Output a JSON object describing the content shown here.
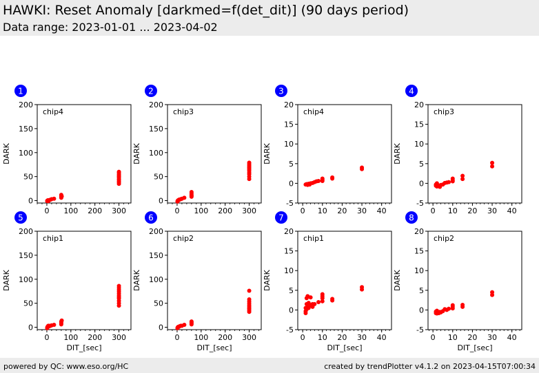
{
  "header": {
    "title": "HAWKI: Reset Anomaly [darkmed=f(det_dit)] (90 days period)",
    "subtitle": "Data range: 2023-01-01 ... 2023-04-02"
  },
  "footer": {
    "left": "powered by QC: www.eso.org/HC",
    "right": "created by trendPlotter v4.1.2 on 2023-04-15T07:00:34"
  },
  "colors": {
    "marker": "#ff0000",
    "badge": "#0000ff"
  },
  "chart_data": [
    {
      "type": "scatter",
      "id": "1",
      "label": "chip4",
      "xlabel": "",
      "ylabel": "DARK",
      "xlim": [
        -40,
        350
      ],
      "ylim": [
        -5,
        200
      ],
      "xticks": [
        0,
        100,
        200,
        300
      ],
      "yticks": [
        0,
        50,
        100,
        150,
        200
      ],
      "points": [
        [
          1.5,
          -1
        ],
        [
          2,
          0
        ],
        [
          3,
          -0.5
        ],
        [
          4,
          0
        ],
        [
          5,
          1
        ],
        [
          6,
          -1
        ],
        [
          8,
          0
        ],
        [
          10,
          1
        ],
        [
          15,
          2
        ],
        [
          20,
          3
        ],
        [
          30,
          4
        ],
        [
          60,
          6
        ],
        [
          60,
          8
        ],
        [
          60,
          10
        ],
        [
          60,
          12
        ],
        [
          62,
          9
        ],
        [
          300,
          35
        ],
        [
          300,
          38
        ],
        [
          300,
          40
        ],
        [
          300,
          43
        ],
        [
          300,
          45
        ],
        [
          300,
          48
        ],
        [
          300,
          50
        ],
        [
          300,
          52
        ],
        [
          300,
          55
        ],
        [
          300,
          58
        ],
        [
          300,
          60
        ]
      ]
    },
    {
      "type": "scatter",
      "id": "2",
      "label": "chip3",
      "xlabel": "",
      "ylabel": "DARK",
      "xlim": [
        -40,
        350
      ],
      "ylim": [
        -5,
        200
      ],
      "xticks": [
        0,
        100,
        200,
        300
      ],
      "yticks": [
        0,
        50,
        100,
        150,
        200
      ],
      "points": [
        [
          1.5,
          -2
        ],
        [
          2,
          -1
        ],
        [
          3,
          0
        ],
        [
          4,
          0
        ],
        [
          5,
          1
        ],
        [
          6,
          1
        ],
        [
          8,
          2
        ],
        [
          10,
          2
        ],
        [
          15,
          3
        ],
        [
          20,
          4
        ],
        [
          30,
          6
        ],
        [
          60,
          8
        ],
        [
          60,
          10
        ],
        [
          60,
          12
        ],
        [
          60,
          15
        ],
        [
          60,
          18
        ],
        [
          300,
          45
        ],
        [
          300,
          50
        ],
        [
          300,
          55
        ],
        [
          300,
          58
        ],
        [
          300,
          62
        ],
        [
          300,
          65
        ],
        [
          300,
          68
        ],
        [
          300,
          70
        ],
        [
          300,
          73
        ],
        [
          300,
          76
        ],
        [
          300,
          79
        ]
      ]
    },
    {
      "type": "scatter",
      "id": "3",
      "label": "chip4",
      "xlabel": "",
      "ylabel": "DARK",
      "xlim": [
        -2.5,
        45
      ],
      "ylim": [
        -5,
        20
      ],
      "xticks": [
        0,
        10,
        20,
        30,
        40
      ],
      "yticks": [
        -5,
        0,
        5,
        10,
        15,
        20
      ],
      "points": [
        [
          1.5,
          -0.3
        ],
        [
          2,
          -0.2
        ],
        [
          2.5,
          -0.4
        ],
        [
          3,
          -0.1
        ],
        [
          3.5,
          -0.3
        ],
        [
          4,
          0
        ],
        [
          5,
          0.1
        ],
        [
          6,
          0.3
        ],
        [
          7,
          0.5
        ],
        [
          8,
          0.6
        ],
        [
          10,
          0.9
        ],
        [
          10,
          1.2
        ],
        [
          10,
          0.6
        ],
        [
          15,
          1.2
        ],
        [
          15,
          1.5
        ],
        [
          30,
          3.6
        ],
        [
          30,
          4.0
        ]
      ]
    },
    {
      "type": "scatter",
      "id": "4",
      "label": "chip3",
      "xlabel": "",
      "ylabel": "DARK",
      "xlim": [
        -2.5,
        45
      ],
      "ylim": [
        -5,
        20
      ],
      "xticks": [
        0,
        10,
        20,
        30,
        40
      ],
      "yticks": [
        -5,
        0,
        5,
        10,
        15,
        20
      ],
      "points": [
        [
          1.5,
          -0.3
        ],
        [
          1.5,
          -0.6
        ],
        [
          2,
          -0.8
        ],
        [
          2,
          0
        ],
        [
          2.5,
          -0.5
        ],
        [
          3,
          -0.7
        ],
        [
          3.5,
          -0.9
        ],
        [
          4,
          -0.4
        ],
        [
          5,
          -0.3
        ],
        [
          6,
          0.1
        ],
        [
          7,
          0.2
        ],
        [
          8,
          0.3
        ],
        [
          10,
          0.5
        ],
        [
          10,
          0.8
        ],
        [
          10,
          1.2
        ],
        [
          15,
          1.1
        ],
        [
          15,
          1.9
        ],
        [
          30,
          4.3
        ],
        [
          30,
          5.2
        ]
      ]
    },
    {
      "type": "scatter",
      "id": "5",
      "label": "chip1",
      "xlabel": "DIT_[sec]",
      "ylabel": "DARK",
      "xlim": [
        -40,
        350
      ],
      "ylim": [
        -5,
        200
      ],
      "xticks": [
        0,
        100,
        200,
        300
      ],
      "yticks": [
        0,
        50,
        100,
        150,
        200
      ],
      "points": [
        [
          1.5,
          -2
        ],
        [
          2,
          0
        ],
        [
          3,
          1
        ],
        [
          4,
          1
        ],
        [
          5,
          2
        ],
        [
          6,
          3
        ],
        [
          8,
          3
        ],
        [
          10,
          2
        ],
        [
          15,
          3
        ],
        [
          20,
          4
        ],
        [
          30,
          5
        ],
        [
          60,
          6
        ],
        [
          60,
          8
        ],
        [
          60,
          10
        ],
        [
          60,
          12
        ],
        [
          62,
          14
        ],
        [
          300,
          45
        ],
        [
          300,
          50
        ],
        [
          300,
          55
        ],
        [
          300,
          60
        ],
        [
          300,
          63
        ],
        [
          300,
          66
        ],
        [
          300,
          70
        ],
        [
          300,
          74
        ],
        [
          300,
          78
        ],
        [
          300,
          82
        ],
        [
          300,
          86
        ]
      ]
    },
    {
      "type": "scatter",
      "id": "6",
      "label": "chip2",
      "xlabel": "DIT_[sec]",
      "ylabel": "DARK",
      "xlim": [
        -40,
        350
      ],
      "ylim": [
        -5,
        200
      ],
      "xticks": [
        0,
        100,
        200,
        300
      ],
      "yticks": [
        0,
        50,
        100,
        150,
        200
      ],
      "points": [
        [
          1.5,
          -2
        ],
        [
          2,
          -1
        ],
        [
          3,
          0
        ],
        [
          4,
          0
        ],
        [
          5,
          1
        ],
        [
          6,
          1
        ],
        [
          8,
          1
        ],
        [
          10,
          2
        ],
        [
          15,
          3
        ],
        [
          20,
          3
        ],
        [
          30,
          5
        ],
        [
          60,
          6
        ],
        [
          60,
          8
        ],
        [
          60,
          10
        ],
        [
          60,
          12
        ],
        [
          300,
          32
        ],
        [
          300,
          35
        ],
        [
          300,
          38
        ],
        [
          300,
          40
        ],
        [
          300,
          43
        ],
        [
          300,
          46
        ],
        [
          300,
          50
        ],
        [
          300,
          54
        ],
        [
          300,
          58
        ],
        [
          300,
          76
        ]
      ]
    },
    {
      "type": "scatter",
      "id": "7",
      "label": "chip1",
      "xlabel": "DIT_[sec]",
      "ylabel": "DARK",
      "xlim": [
        -2.5,
        45
      ],
      "ylim": [
        -5,
        20
      ],
      "xticks": [
        0,
        10,
        20,
        30,
        40
      ],
      "yticks": [
        -5,
        0,
        5,
        10,
        15,
        20
      ],
      "points": [
        [
          1.5,
          -0.8
        ],
        [
          1.5,
          -0.3
        ],
        [
          1.5,
          0.5
        ],
        [
          2,
          0.2
        ],
        [
          2,
          1.5
        ],
        [
          2,
          3.0
        ],
        [
          2.5,
          0.8
        ],
        [
          2.5,
          3.5
        ],
        [
          3,
          0.5
        ],
        [
          3,
          1.8
        ],
        [
          4,
          1.2
        ],
        [
          4,
          3.2
        ],
        [
          5,
          0.8
        ],
        [
          5,
          1.5
        ],
        [
          6,
          1.5
        ],
        [
          8,
          2.0
        ],
        [
          10,
          2.2
        ],
        [
          10,
          3.0
        ],
        [
          10,
          3.5
        ],
        [
          10,
          4.0
        ],
        [
          15,
          2.4
        ],
        [
          15,
          2.8
        ],
        [
          30,
          5.2
        ],
        [
          30,
          5.8
        ]
      ]
    },
    {
      "type": "scatter",
      "id": "8",
      "label": "chip2",
      "xlabel": "DIT_[sec]",
      "ylabel": "DARK",
      "xlim": [
        -2.5,
        45
      ],
      "ylim": [
        -5,
        20
      ],
      "xticks": [
        0,
        10,
        20,
        30,
        40
      ],
      "yticks": [
        -5,
        0,
        5,
        10,
        15,
        20
      ],
      "points": [
        [
          1.5,
          -0.4
        ],
        [
          1.5,
          -0.8
        ],
        [
          2,
          -0.2
        ],
        [
          2,
          -0.9
        ],
        [
          2.5,
          -0.6
        ],
        [
          3,
          -0.8
        ],
        [
          3.5,
          -0.5
        ],
        [
          4,
          -0.6
        ],
        [
          5,
          -0.3
        ],
        [
          6,
          0.2
        ],
        [
          7,
          0.0
        ],
        [
          8,
          0.3
        ],
        [
          10,
          0.4
        ],
        [
          10,
          0.8
        ],
        [
          10,
          1.2
        ],
        [
          15,
          0.8
        ],
        [
          15,
          1.3
        ],
        [
          30,
          3.8
        ],
        [
          30,
          4.5
        ]
      ]
    }
  ]
}
